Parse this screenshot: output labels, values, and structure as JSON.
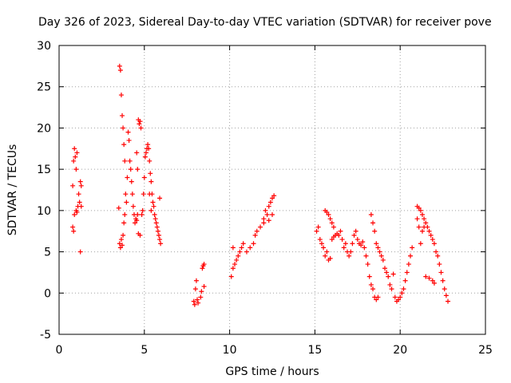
{
  "chart_data": {
    "type": "scatter",
    "title": "Day 326 of 2023, Sidereal Day-to-day VTEC variation (SDTVAR) for receiver pove",
    "xlabel": "GPS time / hours",
    "ylabel": "SDTVAR / TECUs",
    "xlim": [
      0,
      25
    ],
    "ylim": [
      -5,
      30
    ],
    "x_ticks": [
      0,
      5,
      10,
      15,
      20,
      25
    ],
    "y_ticks": [
      -5,
      0,
      5,
      10,
      15,
      20,
      25,
      30
    ],
    "x_tick_labels": [
      "0",
      "5",
      "10",
      "15",
      "20",
      "25"
    ],
    "y_tick_labels": [
      "-5",
      "0",
      "5",
      "10",
      "15",
      "20",
      "25",
      "30"
    ],
    "grid": true,
    "marker": "+",
    "marker_color": "#ff0000",
    "series": [
      {
        "name": "SDTVAR",
        "points": [
          [
            0.8,
            13.0
          ],
          [
            0.85,
            16.0
          ],
          [
            0.9,
            17.5
          ],
          [
            0.95,
            16.5
          ],
          [
            1.0,
            15.0
          ],
          [
            1.05,
            17.0
          ],
          [
            0.8,
            8.0
          ],
          [
            0.85,
            7.5
          ],
          [
            0.9,
            9.5
          ],
          [
            1.0,
            10.0
          ],
          [
            1.05,
            9.8
          ],
          [
            1.1,
            10.5
          ],
          [
            1.15,
            12.0
          ],
          [
            1.2,
            11.0
          ],
          [
            1.25,
            13.5
          ],
          [
            1.3,
            13.0
          ],
          [
            1.3,
            10.5
          ],
          [
            1.25,
            5.0
          ],
          [
            3.5,
            10.3
          ],
          [
            3.55,
            27.5
          ],
          [
            3.6,
            27.0
          ],
          [
            3.65,
            24.0
          ],
          [
            3.7,
            21.5
          ],
          [
            3.75,
            20.0
          ],
          [
            3.8,
            18.0
          ],
          [
            3.85,
            16.0
          ],
          [
            3.55,
            6.0
          ],
          [
            3.6,
            5.5
          ],
          [
            3.65,
            6.5
          ],
          [
            3.7,
            5.8
          ],
          [
            3.75,
            7.0
          ],
          [
            3.8,
            8.5
          ],
          [
            3.85,
            9.5
          ],
          [
            3.9,
            12.0
          ],
          [
            3.95,
            11.0
          ],
          [
            4.0,
            14.0
          ],
          [
            4.05,
            19.5
          ],
          [
            4.1,
            18.5
          ],
          [
            4.15,
            16.0
          ],
          [
            4.2,
            15.0
          ],
          [
            4.25,
            13.5
          ],
          [
            4.3,
            12.0
          ],
          [
            4.35,
            10.5
          ],
          [
            4.4,
            9.5
          ],
          [
            4.45,
            8.5
          ],
          [
            4.5,
            9.0
          ],
          [
            4.55,
            8.8
          ],
          [
            4.6,
            9.5
          ],
          [
            4.65,
            21.0
          ],
          [
            4.7,
            20.5
          ],
          [
            4.75,
            20.8
          ],
          [
            4.8,
            20.0
          ],
          [
            4.6,
            15.0
          ],
          [
            4.55,
            17.0
          ],
          [
            4.65,
            7.2
          ],
          [
            4.75,
            7.0
          ],
          [
            4.85,
            9.5
          ],
          [
            4.9,
            10.0
          ],
          [
            4.95,
            12.0
          ],
          [
            5.0,
            14.0
          ],
          [
            5.05,
            16.5
          ],
          [
            5.1,
            17.0
          ],
          [
            5.15,
            17.5
          ],
          [
            5.2,
            18.0
          ],
          [
            5.25,
            17.5
          ],
          [
            5.3,
            16.0
          ],
          [
            5.35,
            14.5
          ],
          [
            5.4,
            13.5
          ],
          [
            5.45,
            12.0
          ],
          [
            5.5,
            11.0
          ],
          [
            5.55,
            10.5
          ],
          [
            5.6,
            9.5
          ],
          [
            5.65,
            9.0
          ],
          [
            5.7,
            8.5
          ],
          [
            5.75,
            8.0
          ],
          [
            5.8,
            7.5
          ],
          [
            5.85,
            7.0
          ],
          [
            5.9,
            6.5
          ],
          [
            5.95,
            6.0
          ],
          [
            5.9,
            11.5
          ],
          [
            5.3,
            12.0
          ],
          [
            5.4,
            10.0
          ],
          [
            7.9,
            -1.0
          ],
          [
            7.95,
            -1.4
          ],
          [
            8.0,
            0.5
          ],
          [
            8.05,
            1.5
          ],
          [
            8.1,
            -0.8
          ],
          [
            8.15,
            -1.2
          ],
          [
            8.3,
            -0.5
          ],
          [
            8.35,
            0.2
          ],
          [
            8.4,
            3.0
          ],
          [
            8.45,
            3.3
          ],
          [
            8.5,
            3.5
          ],
          [
            8.5,
            0.8
          ],
          [
            10.1,
            2.0
          ],
          [
            10.2,
            3.0
          ],
          [
            10.3,
            3.5
          ],
          [
            10.4,
            4.0
          ],
          [
            10.5,
            4.5
          ],
          [
            10.6,
            5.0
          ],
          [
            10.7,
            5.5
          ],
          [
            10.8,
            6.0
          ],
          [
            10.2,
            5.5
          ],
          [
            11.0,
            5.0
          ],
          [
            11.2,
            5.5
          ],
          [
            11.4,
            6.0
          ],
          [
            11.5,
            7.0
          ],
          [
            11.6,
            7.5
          ],
          [
            11.8,
            8.0
          ],
          [
            12.0,
            9.0
          ],
          [
            12.1,
            10.0
          ],
          [
            12.2,
            9.5
          ],
          [
            12.3,
            10.5
          ],
          [
            12.4,
            11.0
          ],
          [
            12.5,
            11.5
          ],
          [
            12.6,
            11.8
          ],
          [
            12.0,
            8.5
          ],
          [
            12.5,
            9.5
          ],
          [
            12.3,
            8.8
          ],
          [
            15.1,
            7.5
          ],
          [
            15.2,
            8.0
          ],
          [
            15.3,
            6.5
          ],
          [
            15.4,
            6.0
          ],
          [
            15.5,
            5.5
          ],
          [
            15.6,
            10.0
          ],
          [
            15.7,
            9.8
          ],
          [
            15.8,
            9.5
          ],
          [
            15.9,
            9.0
          ],
          [
            16.0,
            8.5
          ],
          [
            16.1,
            8.0
          ],
          [
            15.6,
            4.5
          ],
          [
            15.7,
            5.0
          ],
          [
            15.8,
            4.0
          ],
          [
            15.9,
            4.2
          ],
          [
            16.0,
            6.5
          ],
          [
            16.1,
            6.8
          ],
          [
            16.2,
            7.0
          ],
          [
            16.3,
            7.2
          ],
          [
            16.4,
            7.0
          ],
          [
            16.5,
            7.5
          ],
          [
            16.6,
            6.5
          ],
          [
            16.7,
            5.5
          ],
          [
            16.8,
            6.0
          ],
          [
            16.9,
            5.0
          ],
          [
            17.0,
            4.5
          ],
          [
            17.1,
            5.0
          ],
          [
            17.2,
            6.0
          ],
          [
            17.3,
            7.0
          ],
          [
            17.4,
            7.5
          ],
          [
            17.5,
            6.5
          ],
          [
            17.6,
            6.0
          ],
          [
            17.7,
            5.8
          ],
          [
            17.8,
            6.2
          ],
          [
            17.9,
            5.5
          ],
          [
            18.0,
            4.5
          ],
          [
            18.1,
            3.5
          ],
          [
            18.2,
            2.0
          ],
          [
            18.3,
            1.0
          ],
          [
            18.4,
            0.5
          ],
          [
            18.5,
            -0.5
          ],
          [
            18.6,
            -0.8
          ],
          [
            18.7,
            -0.5
          ],
          [
            18.3,
            9.5
          ],
          [
            18.4,
            8.5
          ],
          [
            18.5,
            7.5
          ],
          [
            18.6,
            6.0
          ],
          [
            18.7,
            5.5
          ],
          [
            18.8,
            5.0
          ],
          [
            18.9,
            4.5
          ],
          [
            19.0,
            4.0
          ],
          [
            19.1,
            3.0
          ],
          [
            19.2,
            2.5
          ],
          [
            19.3,
            2.0
          ],
          [
            19.4,
            1.0
          ],
          [
            19.5,
            0.5
          ],
          [
            19.6,
            2.3
          ],
          [
            19.7,
            -0.5
          ],
          [
            19.8,
            -1.0
          ],
          [
            19.9,
            -0.8
          ],
          [
            20.0,
            -0.5
          ],
          [
            20.1,
            0.0
          ],
          [
            20.2,
            0.5
          ],
          [
            20.3,
            1.5
          ],
          [
            20.4,
            2.5
          ],
          [
            20.5,
            3.5
          ],
          [
            20.6,
            4.5
          ],
          [
            20.7,
            5.5
          ],
          [
            21.0,
            10.5
          ],
          [
            21.1,
            10.3
          ],
          [
            21.2,
            10.0
          ],
          [
            21.3,
            9.5
          ],
          [
            21.4,
            9.0
          ],
          [
            21.5,
            8.5
          ],
          [
            21.6,
            8.0
          ],
          [
            21.7,
            7.5
          ],
          [
            21.8,
            7.0
          ],
          [
            21.9,
            6.5
          ],
          [
            22.0,
            6.0
          ],
          [
            22.1,
            5.0
          ],
          [
            22.2,
            4.5
          ],
          [
            22.3,
            3.5
          ],
          [
            22.4,
            2.5
          ],
          [
            22.5,
            1.5
          ],
          [
            22.6,
            0.5
          ],
          [
            22.7,
            -0.3
          ],
          [
            22.8,
            -1.0
          ],
          [
            21.5,
            2.0
          ],
          [
            21.7,
            1.8
          ],
          [
            21.9,
            1.5
          ],
          [
            22.0,
            1.2
          ],
          [
            21.2,
            6.0
          ],
          [
            21.3,
            7.5
          ],
          [
            21.4,
            8.0
          ],
          [
            21.0,
            9.0
          ],
          [
            21.1,
            8.0
          ]
        ]
      }
    ]
  }
}
